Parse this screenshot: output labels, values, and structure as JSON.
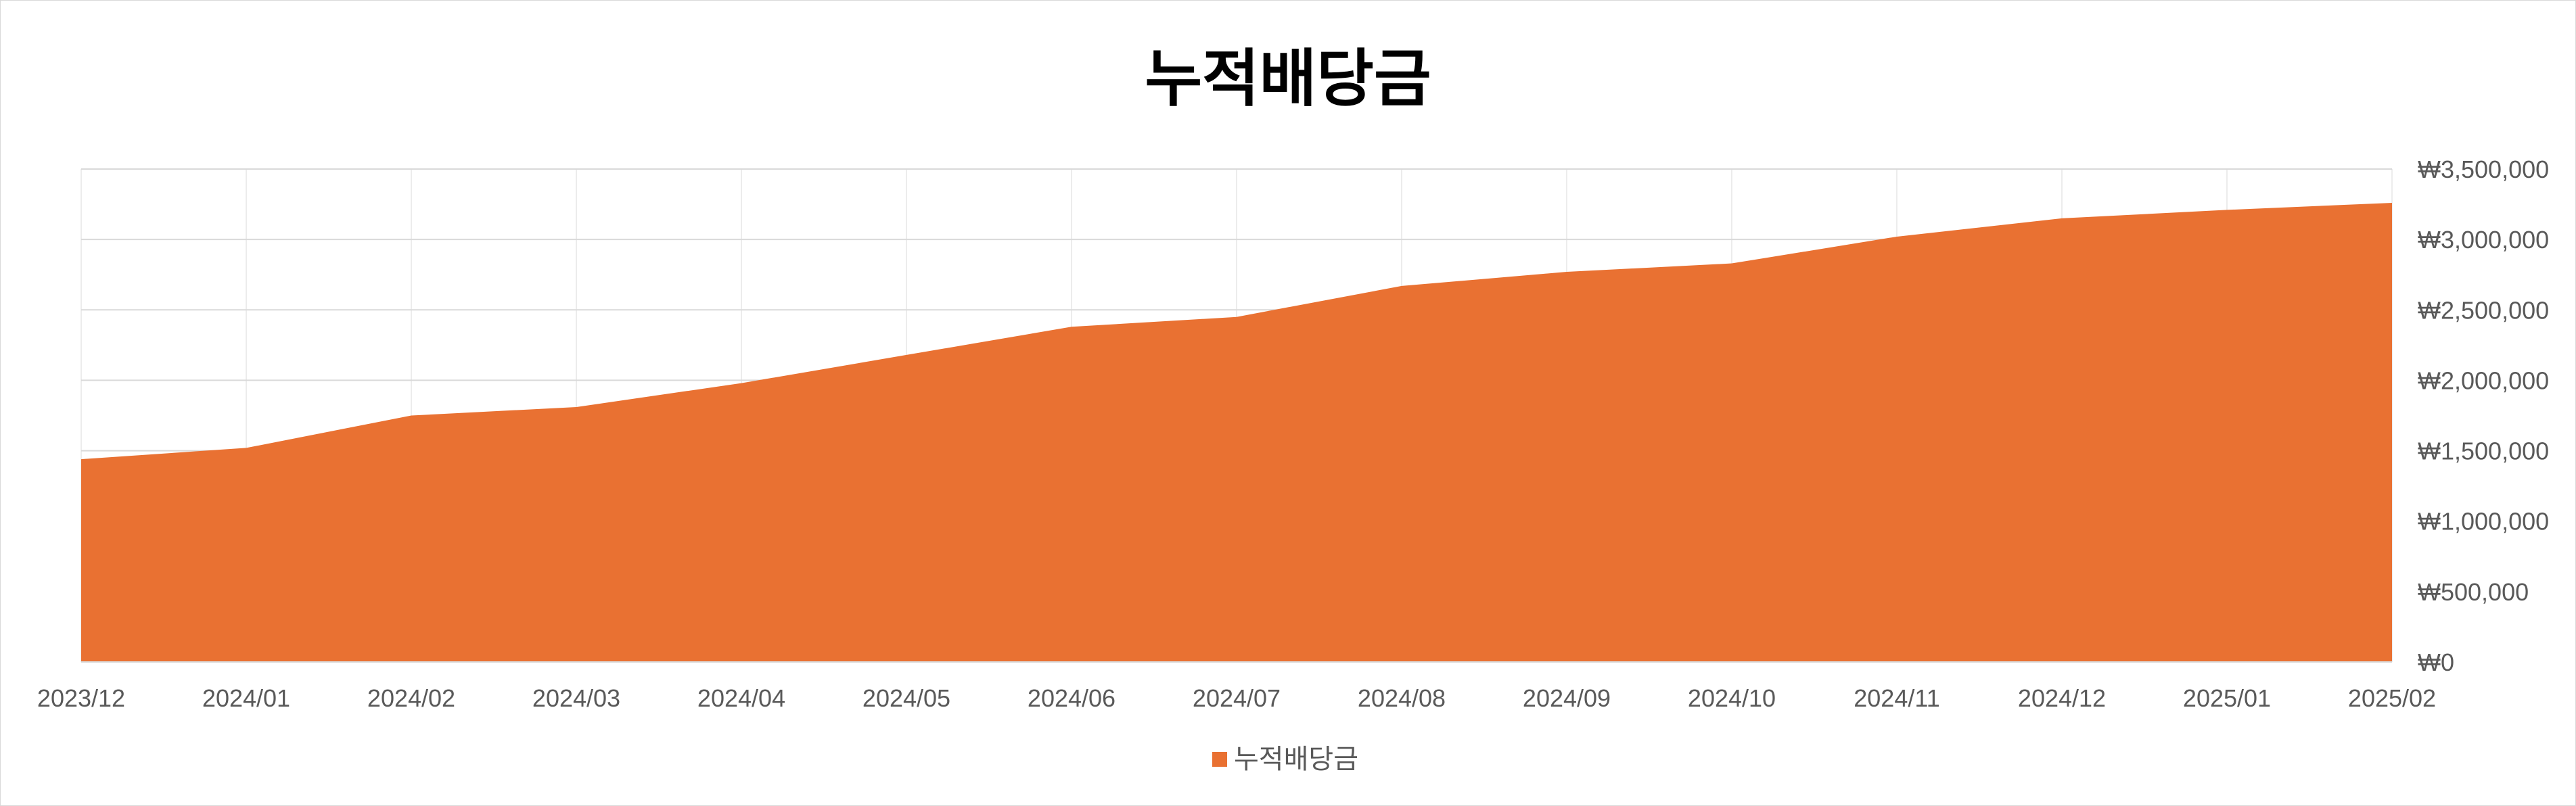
{
  "chart_data": {
    "type": "area",
    "title": "누적배당금",
    "categories": [
      "2023/12",
      "2024/01",
      "2024/02",
      "2024/03",
      "2024/04",
      "2024/05",
      "2024/06",
      "2024/07",
      "2024/08",
      "2024/09",
      "2024/10",
      "2024/11",
      "2024/12",
      "2025/01",
      "2025/02"
    ],
    "series": [
      {
        "name": "누적배당금",
        "color": "#E97132",
        "values": [
          1440000,
          1520000,
          1750000,
          1810000,
          1980000,
          2180000,
          2380000,
          2450000,
          2670000,
          2770000,
          2830000,
          3020000,
          3150000,
          3210000,
          3260000
        ]
      }
    ],
    "y_axis": {
      "position": "right",
      "min": 0,
      "max": 3500000,
      "step": 500000,
      "tick_labels": [
        "₩0",
        "₩500,000",
        "₩1,000,000",
        "₩1,500,000",
        "₩2,000,000",
        "₩2,500,000",
        "₩3,000,000",
        "₩3,500,000"
      ]
    },
    "grid": true,
    "legend": "bottom"
  }
}
